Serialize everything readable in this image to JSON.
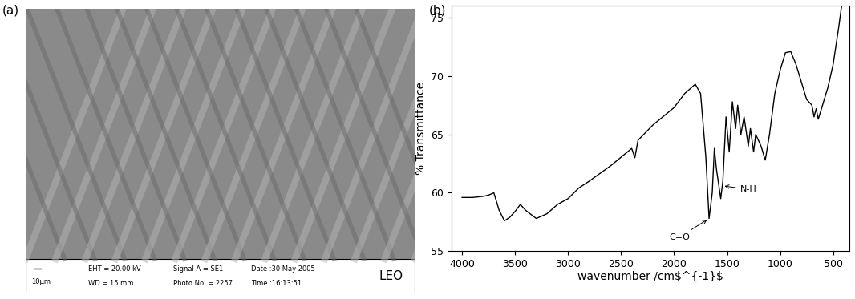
{
  "image_panel": {
    "label": "(a)",
    "scale_bar": "10µm",
    "info_bar": [
      "EHT = 20.00 kV",
      "WD = 15 mm",
      "Signal A = SE1",
      "Photo No. = 2257",
      "Date :30 May 2005",
      "Time :16:13:51"
    ],
    "logo": "LEO"
  },
  "chart_data": {
    "type": "line",
    "title": "(b)",
    "color": "#000000",
    "x_label": "wavenumber /cm$^{-1}$",
    "y_label": "% Transmittance",
    "x": [
      4000,
      3900,
      3800,
      3750,
      3700,
      3650,
      3600,
      3550,
      3500,
      3450,
      3400,
      3300,
      3200,
      3100,
      3000,
      2900,
      2800,
      2600,
      2400,
      2370,
      2340,
      2200,
      2000,
      1900,
      1800,
      1750,
      1700,
      1670,
      1640,
      1620,
      1600,
      1560,
      1540,
      1510,
      1480,
      1450,
      1420,
      1400,
      1370,
      1340,
      1300,
      1280,
      1250,
      1230,
      1180,
      1140,
      1100,
      1050,
      1000,
      950,
      900,
      850,
      800,
      750,
      700,
      680,
      660,
      640,
      600,
      550,
      500,
      450,
      420
    ],
    "values": [
      59.6,
      59.6,
      59.7,
      59.8,
      60.0,
      58.5,
      57.6,
      57.9,
      58.4,
      59.0,
      58.5,
      57.8,
      58.2,
      59.0,
      59.5,
      60.4,
      61.0,
      62.3,
      63.8,
      63.0,
      64.5,
      65.8,
      67.3,
      68.5,
      69.3,
      68.5,
      63.0,
      57.8,
      60.0,
      63.8,
      62.0,
      59.5,
      61.0,
      66.5,
      63.5,
      67.8,
      65.5,
      67.5,
      65.0,
      66.5,
      64.0,
      65.5,
      63.5,
      65.0,
      64.0,
      62.8,
      65.0,
      68.5,
      70.5,
      72.0,
      72.1,
      71.0,
      69.5,
      68.0,
      67.5,
      66.5,
      67.2,
      66.3,
      67.5,
      69.0,
      71.0,
      74.0,
      76.0
    ],
    "xlim": [
      4100,
      350
    ],
    "xticks": [
      4000,
      3500,
      3000,
      2500,
      2000,
      1500,
      1000,
      500
    ],
    "ylim": [
      55,
      76
    ],
    "yticks": [
      55,
      60,
      65,
      70,
      75
    ],
    "annotations": [
      {
        "text": "C=O",
        "x": 1670,
        "y": 57.8,
        "text_x": 1950,
        "text_y": 56.2
      },
      {
        "text": "N-H",
        "x": 1545,
        "y": 60.6,
        "text_x": 1300,
        "text_y": 60.3
      }
    ]
  }
}
